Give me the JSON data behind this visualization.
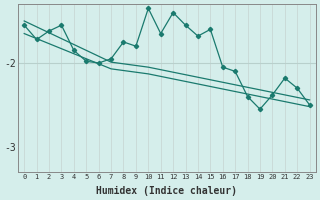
{
  "xlabel": "Humidex (Indice chaleur)",
  "ylabel": "",
  "bg_color": "#d5eeeb",
  "line_color": "#1a7a6e",
  "vgrid_color": "#c8d8d5",
  "hgrid_color": "#b8d0cc",
  "x_data": [
    0,
    1,
    2,
    3,
    4,
    5,
    6,
    7,
    8,
    9,
    10,
    11,
    12,
    13,
    14,
    15,
    16,
    17,
    18,
    19,
    20,
    21,
    22,
    23
  ],
  "y_main": [
    -1.55,
    -1.72,
    -1.62,
    -1.55,
    -1.85,
    -1.98,
    -2.0,
    -1.95,
    -1.75,
    -1.8,
    -1.35,
    -1.65,
    -1.4,
    -1.55,
    -1.68,
    -1.6,
    -2.05,
    -2.1,
    -2.4,
    -2.55,
    -2.38,
    -2.18,
    -2.3,
    -2.5
  ],
  "y_line1": [
    -1.5,
    -1.57,
    -1.64,
    -1.71,
    -1.78,
    -1.85,
    -1.92,
    -1.99,
    -2.01,
    -2.03,
    -2.05,
    -2.08,
    -2.11,
    -2.14,
    -2.17,
    -2.2,
    -2.23,
    -2.26,
    -2.29,
    -2.32,
    -2.35,
    -2.38,
    -2.41,
    -2.44
  ],
  "y_line2": [
    -1.65,
    -1.71,
    -1.77,
    -1.83,
    -1.89,
    -1.95,
    -2.01,
    -2.07,
    -2.09,
    -2.11,
    -2.13,
    -2.16,
    -2.19,
    -2.22,
    -2.25,
    -2.28,
    -2.31,
    -2.34,
    -2.37,
    -2.4,
    -2.43,
    -2.46,
    -2.49,
    -2.52
  ],
  "ylim": [
    -3.3,
    -1.3
  ],
  "yticks": [
    -3.0,
    -2.0
  ],
  "xlim": [
    -0.5,
    23.5
  ],
  "xticks": [
    0,
    1,
    2,
    3,
    4,
    5,
    6,
    7,
    8,
    9,
    10,
    11,
    12,
    13,
    14,
    15,
    16,
    17,
    18,
    19,
    20,
    21,
    22,
    23
  ]
}
